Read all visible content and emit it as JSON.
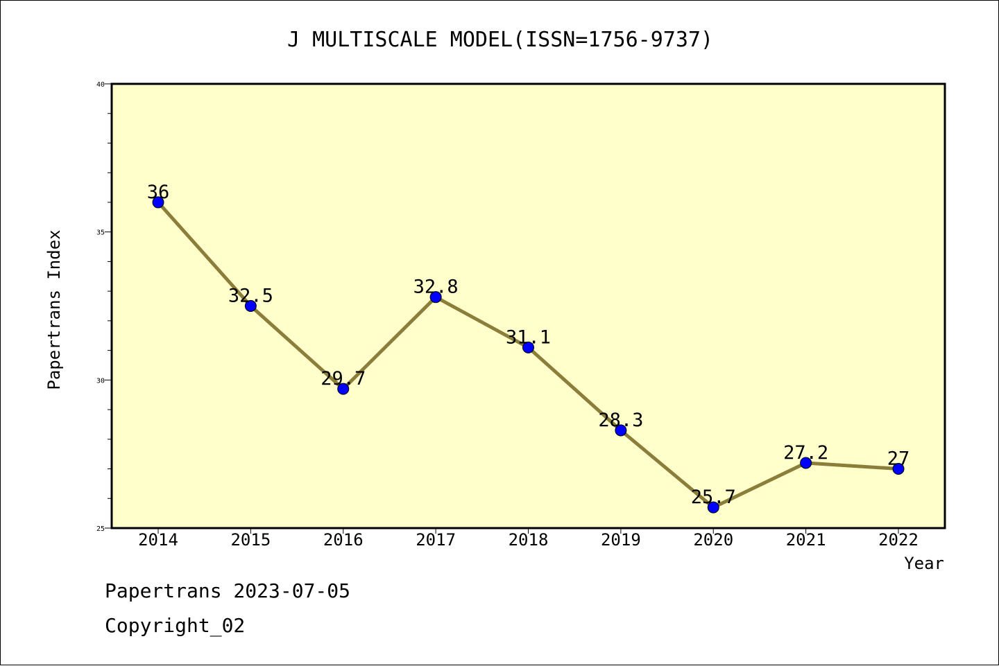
{
  "chart_data": {
    "type": "line",
    "title": "J MULTISCALE MODEL(ISSN=1756-9737)",
    "xlabel": "Year",
    "ylabel": "Papertrans Index",
    "categories": [
      "2014",
      "2015",
      "2016",
      "2017",
      "2018",
      "2019",
      "2020",
      "2021",
      "2022"
    ],
    "series": [
      {
        "values": [
          36,
          32.5,
          29.7,
          32.8,
          31.1,
          28.3,
          25.7,
          27.2,
          27
        ],
        "data_labels": [
          "36",
          "32.5",
          "29.7",
          "32.8",
          "31.1",
          "28.3",
          "25.7",
          "27.2",
          "27"
        ]
      }
    ],
    "ylim": [
      25,
      40
    ],
    "yticks": [
      25,
      30,
      35,
      40
    ],
    "ytick_labels": [
      "25",
      "30",
      "35",
      "40"
    ],
    "grid": false,
    "colors": {
      "plot_background": "#ffffcc",
      "line": "#8b7d3a",
      "marker": "#0000ff"
    }
  },
  "footer": {
    "date_line": "Papertrans 2023-07-05",
    "copyright": "Copyright_02"
  }
}
